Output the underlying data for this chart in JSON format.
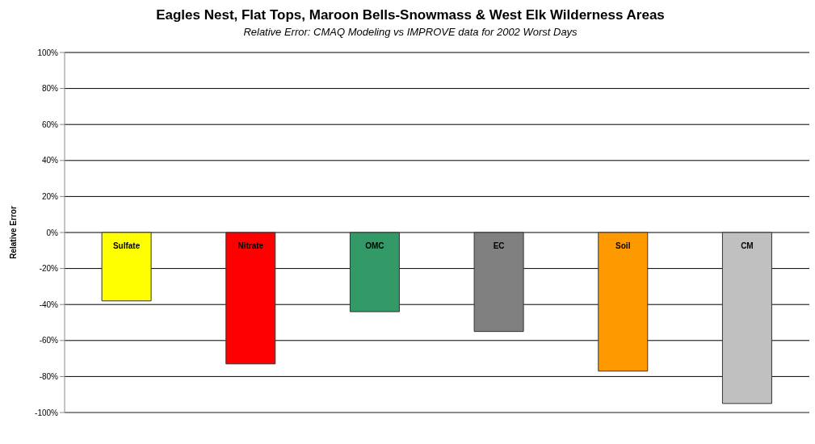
{
  "chart_data": {
    "type": "bar",
    "title": "Eagles Nest, Flat Tops, Maroon Bells-Snowmass & West Elk Wilderness Areas",
    "subtitle": "Relative Error:  CMAQ Modeling vs IMPROVE data for 2002 Worst Days",
    "ylabel": "Relative Error",
    "categories": [
      "Sulfate",
      "Nitrate",
      "OMC",
      "EC",
      "Soil",
      "CM"
    ],
    "values": [
      -38,
      -73,
      -44,
      -55,
      -77,
      -95
    ],
    "colors": [
      "#ffff00",
      "#ff0000",
      "#339966",
      "#808080",
      "#ff9900",
      "#c0c0c0"
    ],
    "ylim": [
      -100,
      100
    ],
    "yticks": [
      {
        "value": -100,
        "label": "-100%"
      },
      {
        "value": -80,
        "label": "-80%"
      },
      {
        "value": -60,
        "label": "-60%"
      },
      {
        "value": -40,
        "label": "-40%"
      },
      {
        "value": -20,
        "label": "-20%"
      },
      {
        "value": 0,
        "label": "0%"
      },
      {
        "value": 20,
        "label": "20%"
      },
      {
        "value": 40,
        "label": "40%"
      },
      {
        "value": 60,
        "label": "60%"
      },
      {
        "value": 80,
        "label": "80%"
      },
      {
        "value": 100,
        "label": "100%"
      }
    ],
    "grid": "y",
    "legend": false
  }
}
